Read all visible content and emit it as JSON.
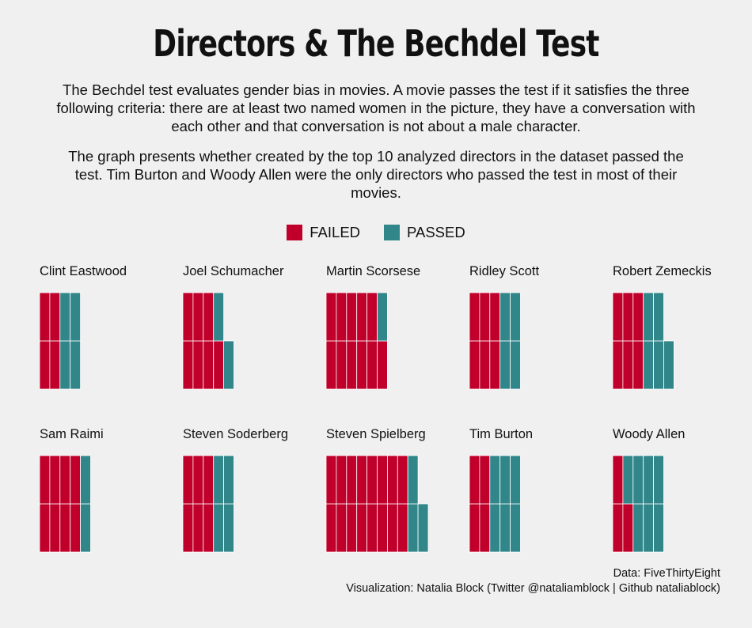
{
  "title": "Directors & The Bechdel Test",
  "subtitle_1": "The Bechdel test evaluates gender bias in movies. A movie passes the test if it satisfies the three following criteria: there are at least two named women in the picture, they have a conversation with each other and that conversation is not about a male character.",
  "subtitle_2": "The graph presents whether created by the top 10 analyzed directors in the dataset passed the test. Tim Burton and Woody Allen were the only directors who passed the test in most of their movies.",
  "legend": {
    "failed_label": "FAILED",
    "passed_label": "PASSED"
  },
  "colors": {
    "failed": "#c0002a",
    "passed": "#31868a",
    "background": "#f0f0f0"
  },
  "chart_data": {
    "type": "waffle",
    "title": "Directors & The Bechdel Test",
    "categories": [
      "FAILED",
      "PASSED"
    ],
    "directors": [
      {
        "name": "Clint Eastwood",
        "failed": 4,
        "passed": 4
      },
      {
        "name": "Joel Schumacher",
        "failed": 7,
        "passed": 2
      },
      {
        "name": "Martin Scorsese",
        "failed": 11,
        "passed": 1
      },
      {
        "name": "Ridley Scott",
        "failed": 6,
        "passed": 4
      },
      {
        "name": "Robert Zemeckis",
        "failed": 6,
        "passed": 5
      },
      {
        "name": "Sam Raimi",
        "failed": 8,
        "passed": 2
      },
      {
        "name": "Steven Soderberg",
        "failed": 6,
        "passed": 4
      },
      {
        "name": "Steven Spielberg",
        "failed": 16,
        "passed": 3
      },
      {
        "name": "Tim Burton",
        "failed": 4,
        "passed": 6
      },
      {
        "name": "Woody Allen",
        "failed": 3,
        "passed": 7
      }
    ]
  },
  "credits": {
    "data_line": "Data: FiveThirtyEight",
    "viz_line": "Visualization: Natalia Block (Twitter @nataliamblock | Github nataliablock)"
  }
}
